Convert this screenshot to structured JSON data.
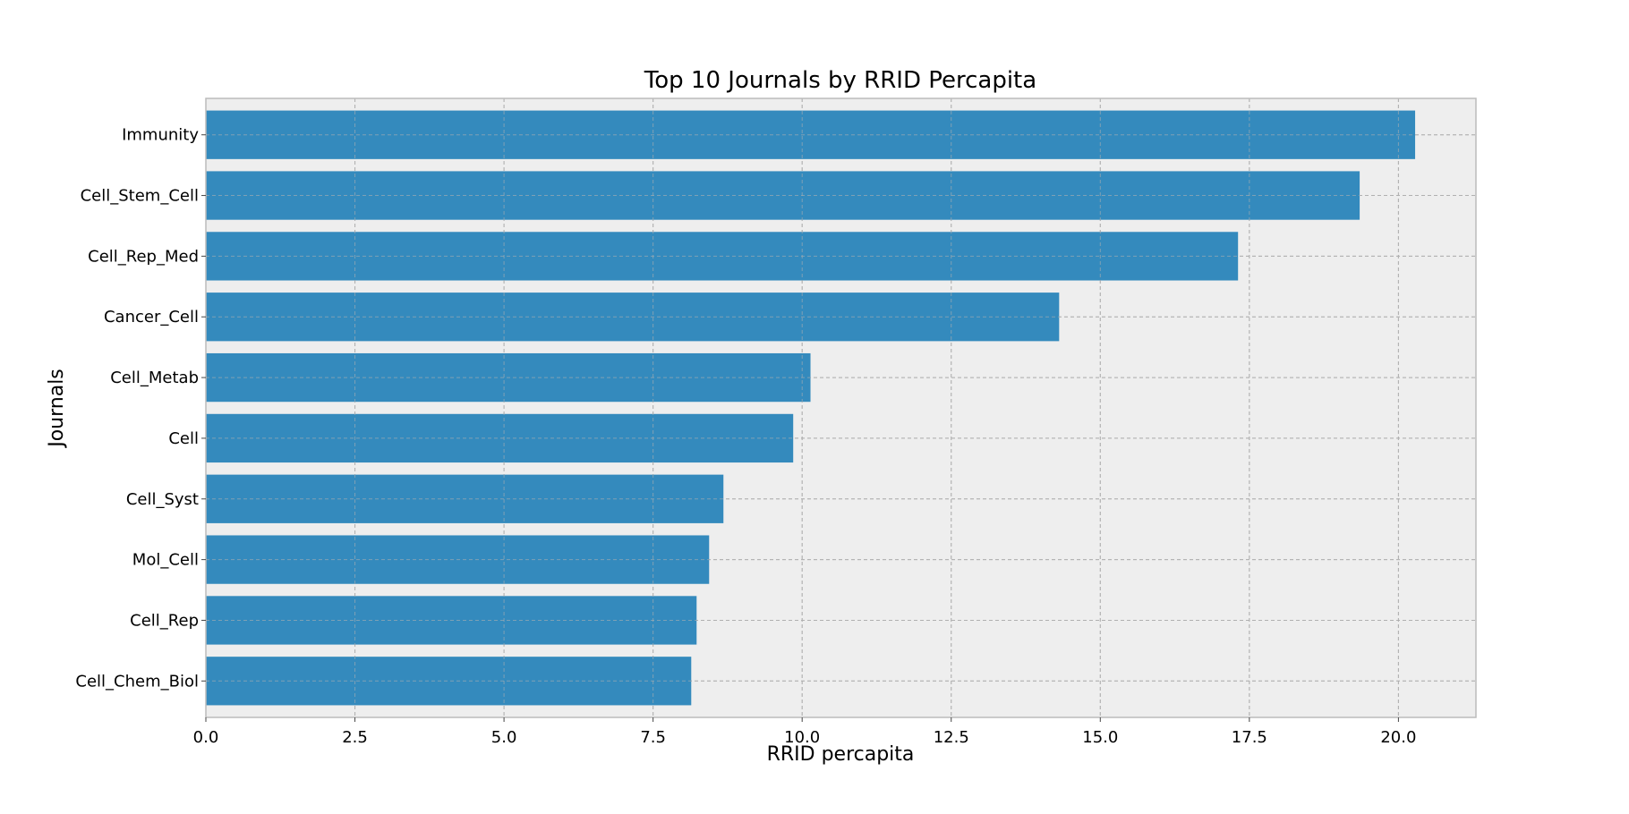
{
  "chart_data": {
    "type": "bar",
    "orientation": "horizontal",
    "title": "Top 10  Journals by RRID Percapita",
    "xlabel": "RRID percapita",
    "ylabel": "Journals",
    "categories": [
      "Immunity",
      "Cell_Stem_Cell",
      "Cell_Rep_Med",
      "Cancer_Cell",
      "Cell_Metab",
      "Cell",
      "Cell_Syst",
      "Mol_Cell",
      "Cell_Rep",
      "Cell_Chem_Biol"
    ],
    "values": [
      20.28,
      19.35,
      17.31,
      14.31,
      10.14,
      9.85,
      8.68,
      8.44,
      8.23,
      8.14
    ],
    "xlim": [
      0,
      21.3
    ],
    "xticks": [
      0.0,
      2.5,
      5.0,
      7.5,
      10.0,
      12.5,
      15.0,
      17.5,
      20.0
    ],
    "xtick_labels": [
      "0.0",
      "2.5",
      "5.0",
      "7.5",
      "10.0",
      "12.5",
      "15.0",
      "17.5",
      "20.0"
    ],
    "grid": true,
    "colors": {
      "bar": "#348abd",
      "background": "#eeeeee"
    }
  }
}
